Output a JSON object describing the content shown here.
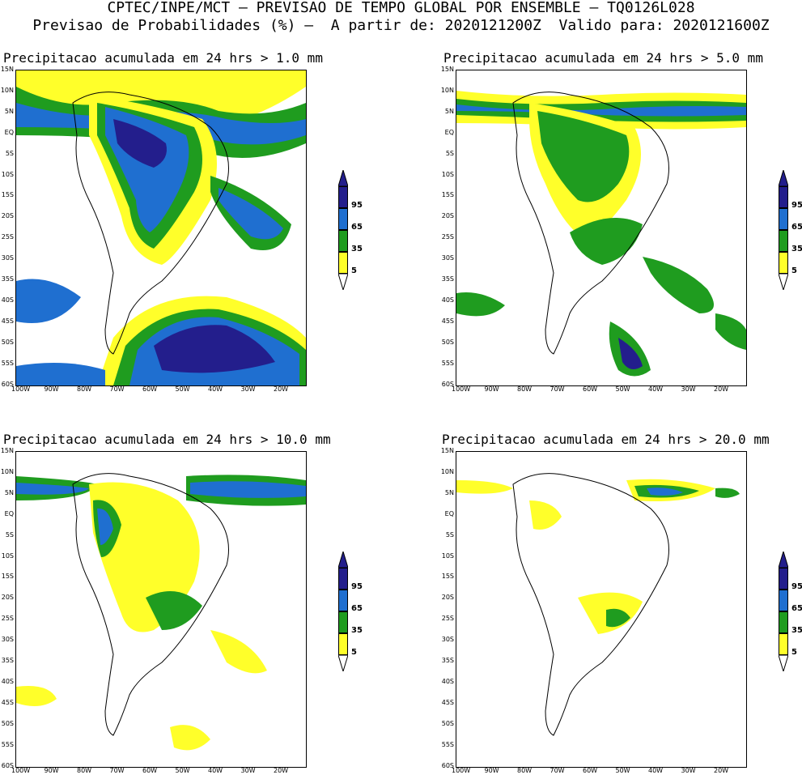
{
  "header": {
    "line1": "CPTEC/INPE/MCT — PREVISAO DE TEMPO GLOBAL POR ENSEMBLE — TQ0126L028",
    "line2": "Previsao de Probabilidades (%) —  A partir de: 2020121200Z  Valido para: 2020121600Z"
  },
  "axes": {
    "lat_labels": [
      "15N",
      "10N",
      "5N",
      "EQ",
      "5S",
      "10S",
      "15S",
      "20S",
      "25S",
      "30S",
      "35S",
      "40S",
      "45S",
      "50S",
      "55S",
      "60S"
    ],
    "lon_labels": [
      "100W",
      "90W",
      "80W",
      "70W",
      "60W",
      "50W",
      "40W",
      "30W",
      "20W"
    ]
  },
  "colorbar": {
    "labels": [
      "95",
      "65",
      "35",
      "5"
    ],
    "colors": {
      "c95": "#231e8c",
      "c65": "#1f6fd0",
      "c35": "#1f9c1f",
      "c5": "#ffff2a"
    }
  },
  "panels": [
    {
      "title": "Precipitacao acumulada em 24 hrs > 1.0 mm"
    },
    {
      "title": "Precipitacao acumulada em 24 hrs > 5.0 mm"
    },
    {
      "title": "Precipitacao acumulada em 24 hrs > 10.0 mm"
    },
    {
      "title": "Precipitacao acumulada em 24 hrs > 20.0 mm"
    }
  ]
}
